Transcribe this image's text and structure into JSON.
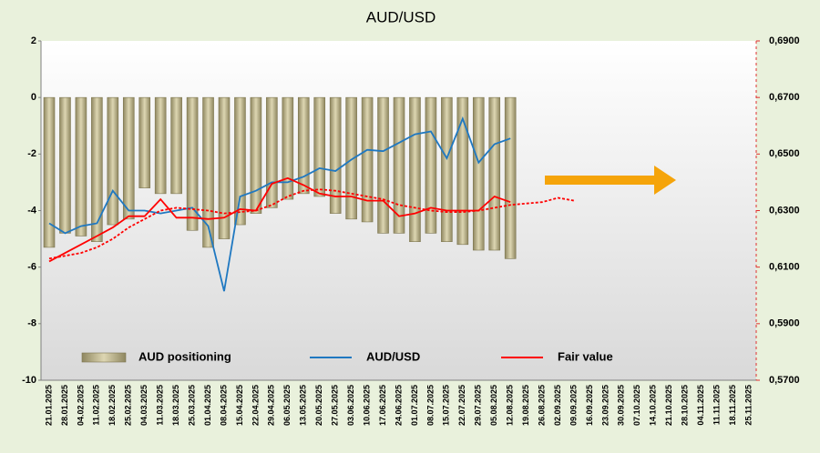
{
  "chart_data": {
    "type": "bar",
    "title": "AUD/USD",
    "categories": [
      "21.01.2025",
      "28.01.2025",
      "04.02.2025",
      "11.02.2025",
      "18.02.2025",
      "25.02.2025",
      "04.03.2025",
      "11.03.2025",
      "18.03.2025",
      "25.03.2025",
      "01.04.2025",
      "08.04.2025",
      "15.04.2025",
      "22.04.2025",
      "29.04.2025",
      "06.05.2025",
      "13.05.2025",
      "20.05.2025",
      "27.05.2025",
      "03.06.2025",
      "10.06.2025",
      "17.06.2025",
      "24.06.2025",
      "01.07.2025",
      "08.07.2025",
      "15.07.2025",
      "22.07.2025",
      "29.07.2025",
      "05.08.2025",
      "12.08.2025",
      "19.08.2025",
      "26.08.2025",
      "02.09.2025",
      "09.09.2025",
      "16.09.2025",
      "23.09.2025",
      "30.09.2025",
      "07.10.2025",
      "14.10.2025",
      "21.10.2025",
      "28.10.2025",
      "04.11.2025",
      "11.11.2025",
      "18.11.2025",
      "25.11.2025"
    ],
    "series": [
      {
        "name": "AUD positioning",
        "type": "bar",
        "color": "#c9c29c",
        "axis": "y",
        "values": [
          -5.3,
          -4.8,
          -4.9,
          -5.1,
          -4.5,
          -4.3,
          -3.2,
          -3.4,
          -3.4,
          -4.7,
          -5.3,
          -5.0,
          -4.5,
          -4.1,
          -3.9,
          -3.6,
          -3.4,
          -3.5,
          -4.1,
          -4.3,
          -4.4,
          -4.8,
          -4.8,
          -5.1,
          -4.8,
          -5.1,
          -5.2,
          -5.4,
          -5.4,
          -5.7,
          null,
          null,
          null,
          null,
          null,
          null,
          null,
          null,
          null,
          null,
          null,
          null,
          null,
          null,
          null
        ]
      },
      {
        "name": "AUD/USD",
        "type": "line",
        "color": "#1f78c1",
        "axis": "y2",
        "values": [
          0.6255,
          0.622,
          0.6245,
          0.6255,
          0.637,
          0.63,
          0.63,
          0.629,
          0.63,
          0.631,
          0.6245,
          0.6015,
          0.635,
          0.637,
          0.64,
          0.64,
          0.642,
          0.645,
          0.644,
          0.648,
          0.6515,
          0.651,
          0.654,
          0.657,
          0.658,
          0.6485,
          0.6625,
          0.647,
          0.6535,
          0.6555,
          null,
          null,
          null,
          null,
          null,
          null,
          null,
          null,
          null,
          null,
          null,
          null,
          null,
          null,
          null
        ]
      },
      {
        "name": "Fair value",
        "type": "line",
        "color": "#ff0000",
        "axis": "y2",
        "values": [
          0.612,
          0.615,
          0.618,
          0.621,
          0.624,
          0.628,
          0.628,
          0.634,
          0.6275,
          0.6275,
          0.627,
          0.6275,
          0.6305,
          0.63,
          0.6395,
          0.6415,
          0.639,
          0.636,
          0.635,
          0.635,
          0.6335,
          0.6335,
          0.628,
          0.629,
          0.631,
          0.63,
          0.63,
          0.63,
          0.635,
          0.633,
          null,
          null,
          null,
          null,
          null,
          null,
          null,
          null,
          null,
          null,
          null,
          null,
          null,
          null,
          null
        ]
      },
      {
        "type": "line",
        "dashed": true,
        "color": "#ff0000",
        "axis": "y2",
        "values": [
          0.613,
          0.614,
          0.615,
          0.617,
          0.62,
          0.624,
          0.627,
          0.63,
          0.631,
          0.6305,
          0.63,
          0.629,
          0.6295,
          0.63,
          0.632,
          0.635,
          0.637,
          0.6375,
          0.637,
          0.636,
          0.635,
          0.634,
          0.632,
          0.631,
          0.63,
          0.6295,
          0.6295,
          0.63,
          0.631,
          0.632,
          0.6325,
          0.633,
          0.6345,
          0.6335,
          null,
          null,
          null,
          null,
          null,
          null,
          null,
          null,
          null,
          null,
          null
        ]
      }
    ],
    "ylim": [
      -10,
      2
    ],
    "yticks": [
      -10,
      -8,
      -6,
      -4,
      -2,
      0,
      2
    ],
    "y2lim": [
      0.57,
      0.69
    ],
    "y2ticks": [
      {
        "value": 0.57,
        "label": "0,5700"
      },
      {
        "value": 0.59,
        "label": "0,5900"
      },
      {
        "value": 0.61,
        "label": "0,6100"
      },
      {
        "value": 0.63,
        "label": "0,6300"
      },
      {
        "value": 0.65,
        "label": "0,6500"
      },
      {
        "value": 0.67,
        "label": "0,6700"
      },
      {
        "value": 0.69,
        "label": "0,6900"
      }
    ],
    "grid": false,
    "legend": "bottom"
  }
}
